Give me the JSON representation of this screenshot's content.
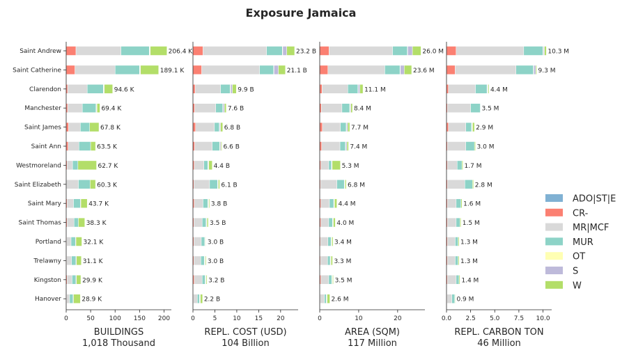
{
  "chart_data": {
    "type": "bar",
    "orientation": "horizontal",
    "stacked": true,
    "title": "Exposure Jamaica",
    "categories": [
      "Saint Andrew",
      "Saint Catherine",
      "Clarendon",
      "Manchester",
      "Saint James",
      "Saint Ann",
      "Westmoreland",
      "Saint Elizabeth",
      "Saint Mary",
      "Saint Thomas",
      "Portland",
      "Trelawny",
      "Kingston",
      "Hanover"
    ],
    "legend": {
      "position": "right",
      "entries": [
        {
          "name": "ADO|ST|E",
          "color": "#80b1d3"
        },
        {
          "name": "CR-",
          "color": "#fb8072"
        },
        {
          "name": "MR|MCF",
          "color": "#d9d9d9"
        },
        {
          "name": "MUR",
          "color": "#8dd3c7"
        },
        {
          "name": "OT",
          "color": "#ffffb3"
        },
        {
          "name": "S",
          "color": "#bebada"
        },
        {
          "name": "W",
          "color": "#b3de69"
        }
      ]
    },
    "panels": [
      {
        "xlabel": "BUILDINGS",
        "sublabel": "1,018 Thousand",
        "xlim": [
          0,
          215
        ],
        "xticks": [
          0,
          50,
          100,
          150,
          200
        ],
        "xtick_labels": [
          "0",
          "50",
          "100",
          "150",
          "200"
        ],
        "segments": {
          "ADO|ST|E": [
            0,
            0,
            0,
            0,
            0,
            0,
            0,
            0,
            0,
            0,
            0,
            0,
            0,
            0
          ],
          "CR-": [
            20,
            18,
            3,
            3,
            5,
            4,
            2,
            0,
            2,
            2,
            1,
            1,
            2,
            1
          ],
          "MR|MCF": [
            92,
            82,
            40,
            30,
            24,
            22,
            11,
            25,
            13,
            14,
            9,
            10,
            10,
            6
          ],
          "MUR": [
            58,
            50,
            33,
            28,
            19,
            24,
            11,
            24,
            14,
            9,
            9,
            9,
            8,
            7
          ],
          "OT": [
            1,
            1,
            1,
            1,
            0,
            0,
            0,
            0,
            0,
            0,
            0,
            0,
            0,
            0
          ],
          "S": [
            1,
            1,
            1,
            1,
            0,
            0,
            0,
            0,
            1,
            0,
            1,
            1,
            1,
            1
          ],
          "W": [
            34,
            37,
            17,
            6,
            19,
            10,
            38,
            11,
            13,
            13,
            12,
            10,
            9,
            14
          ]
        },
        "totals": [
          206.4,
          189.1,
          94.6,
          69.4,
          67.8,
          63.5,
          62.7,
          60.3,
          43.7,
          38.3,
          32.1,
          31.1,
          29.9,
          28.9
        ],
        "total_labels": [
          "206.4 K",
          "189.1 K",
          "94.6 K",
          "69.4 K",
          "67.8 K",
          "63.5 K",
          "62.7 K",
          "60.3 K",
          "43.7 K",
          "38.3 K",
          "32.1 K",
          "31.1 K",
          "29.9 K",
          "28.9 K"
        ]
      },
      {
        "xlabel": "REPL. COST (USD)",
        "sublabel": "104 Billion",
        "xlim": [
          0,
          24
        ],
        "xticks": [
          0,
          5,
          10,
          15,
          20
        ],
        "xtick_labels": [
          "0",
          "5",
          "10",
          "15",
          "20"
        ],
        "segments": {
          "ADO|ST|E": [
            0,
            0,
            0,
            0,
            0,
            0,
            0,
            0,
            0,
            0,
            0,
            0,
            0,
            0
          ],
          "CR-": [
            2.3,
            2.0,
            0.5,
            0.4,
            0.6,
            0.4,
            0.3,
            0.2,
            0.3,
            0.2,
            0.2,
            0.2,
            0.3,
            0.1
          ],
          "MR|MCF": [
            14.5,
            13.2,
            5.8,
            4.8,
            4.3,
            4.0,
            2.2,
            3.6,
            2.0,
            1.9,
            1.7,
            1.6,
            1.8,
            0.9
          ],
          "MUR": [
            3.6,
            3.2,
            2.2,
            1.6,
            1.1,
            1.7,
            0.9,
            1.8,
            1.1,
            0.9,
            0.8,
            0.8,
            0.7,
            0.5
          ],
          "OT": [
            0.1,
            0.1,
            0.1,
            0.1,
            0.1,
            0.1,
            0.1,
            0.1,
            0.1,
            0.1,
            0.1,
            0.1,
            0.1,
            0.1
          ],
          "S": [
            0.9,
            1.0,
            0.4,
            0.3,
            0.2,
            0.2,
            0.1,
            0.1,
            0.1,
            0.1,
            0.1,
            0.1,
            0.1,
            0.1
          ],
          "W": [
            1.8,
            1.6,
            0.9,
            0.4,
            0.5,
            0.2,
            0.8,
            0.3,
            0.2,
            0.3,
            0.1,
            0.2,
            0.2,
            0.5
          ]
        },
        "totals": [
          23.2,
          21.1,
          9.9,
          7.6,
          6.8,
          6.6,
          4.4,
          6.1,
          3.8,
          3.5,
          3.0,
          3.0,
          3.2,
          2.2
        ],
        "total_labels": [
          "23.2 B",
          "21.1 B",
          "9.9 B",
          "7.6 B",
          "6.8 B",
          "6.6 B",
          "4.4 B",
          "6.1 B",
          "3.8 B",
          "3.5 B",
          "3.0 B",
          "3.0 B",
          "3.2 B",
          "2.2 B"
        ]
      },
      {
        "xlabel": "AREA (SQM)",
        "sublabel": "117 Million",
        "xlim": [
          0,
          27
        ],
        "xticks": [
          0,
          10,
          20
        ],
        "xtick_labels": [
          "0",
          "10",
          "20"
        ],
        "segments": {
          "ADO|ST|E": [
            0,
            0,
            0,
            0,
            0,
            0,
            0,
            0,
            0,
            0,
            0,
            0,
            0,
            0
          ],
          "CR-": [
            2.4,
            2.1,
            0.6,
            0.4,
            0.7,
            0.5,
            0.3,
            0.2,
            0.3,
            0.3,
            0.2,
            0.2,
            0.3,
            0.1
          ],
          "MR|MCF": [
            16.3,
            14.6,
            6.6,
            5.3,
            4.6,
            4.7,
            2.0,
            4.2,
            2.2,
            2.0,
            1.9,
            1.8,
            2.0,
            1.1
          ],
          "MUR": [
            3.8,
            3.9,
            2.6,
            2.0,
            1.5,
            1.4,
            0.7,
            1.9,
            1.1,
            1.0,
            0.8,
            0.7,
            0.8,
            0.5
          ],
          "OT": [
            0.1,
            0.1,
            0.1,
            0.1,
            0.1,
            0.1,
            0.1,
            0.1,
            0.1,
            0.1,
            0.1,
            0.1,
            0.1,
            0.1
          ],
          "S": [
            1.2,
            1.0,
            0.4,
            0.2,
            0.3,
            0.3,
            0.1,
            0.1,
            0.1,
            0.1,
            0.1,
            0.1,
            0.1,
            0.1
          ],
          "W": [
            2.2,
            1.9,
            0.8,
            0.4,
            0.5,
            0.4,
            2.1,
            0.3,
            0.6,
            0.5,
            0.3,
            0.4,
            0.2,
            0.7
          ]
        },
        "totals": [
          26.0,
          23.6,
          11.1,
          8.4,
          7.7,
          7.4,
          5.3,
          6.8,
          4.4,
          4.0,
          3.4,
          3.3,
          3.5,
          2.6
        ],
        "total_labels": [
          "26.0 M",
          "23.6 M",
          "11.1 M",
          "8.4 M",
          "7.7 M",
          "7.4 M",
          "5.3 M",
          "6.8 M",
          "4.4 M",
          "4.0 M",
          "3.4 M",
          "3.3 M",
          "3.5 M",
          "2.6 M"
        ]
      },
      {
        "xlabel": "REPL. CARBON TON",
        "sublabel": "46 Million",
        "xlim": [
          0,
          10.9
        ],
        "xticks": [
          0,
          2.5,
          5.0,
          7.5,
          10.0
        ],
        "xtick_labels": [
          "0.0",
          "2.5",
          "5.0",
          "7.5",
          "10.0"
        ],
        "segments": {
          "ADO|ST|E": [
            0,
            0,
            0,
            0,
            0,
            0,
            0,
            0,
            0,
            0,
            0,
            0,
            0,
            0
          ],
          "CR-": [
            1.0,
            0.9,
            0.2,
            0.1,
            0.2,
            0.1,
            0.1,
            0.1,
            0.1,
            0.1,
            0.1,
            0.1,
            0.1,
            0.05
          ],
          "MR|MCF": [
            7.0,
            6.3,
            2.8,
            2.4,
            1.8,
            1.9,
            1.0,
            1.8,
            0.9,
            0.9,
            0.8,
            0.8,
            0.9,
            0.5
          ],
          "MUR": [
            2.0,
            1.8,
            1.2,
            1.0,
            0.6,
            0.9,
            0.5,
            0.8,
            0.5,
            0.4,
            0.3,
            0.3,
            0.3,
            0.3
          ],
          "OT": [
            0.05,
            0.05,
            0.05,
            0,
            0.05,
            0,
            0,
            0,
            0,
            0,
            0,
            0,
            0,
            0
          ],
          "S": [
            0.1,
            0.2,
            0.05,
            0,
            0.05,
            0,
            0,
            0,
            0,
            0,
            0,
            0,
            0,
            0
          ],
          "W": [
            0.2,
            0.1,
            0.1,
            0,
            0.2,
            0.1,
            0.1,
            0.1,
            0.1,
            0.1,
            0.1,
            0.1,
            0.1,
            0.05
          ]
        },
        "totals": [
          10.3,
          9.3,
          4.4,
          3.5,
          2.9,
          3.0,
          1.7,
          2.8,
          1.6,
          1.5,
          1.3,
          1.3,
          1.4,
          0.9
        ],
        "total_labels": [
          "10.3 M",
          "9.3 M",
          "4.4 M",
          "3.5 M",
          "2.9 M",
          "3.0 M",
          "1.7 M",
          "2.8 M",
          "1.6 M",
          "1.5 M",
          "1.3 M",
          "1.3 M",
          "1.4 M",
          "0.9 M"
        ]
      }
    ]
  }
}
